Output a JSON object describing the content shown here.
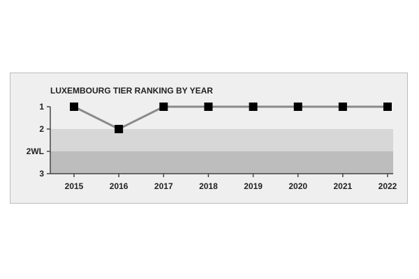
{
  "chart_data": {
    "type": "line",
    "title": "LUXEMBOURG TIER RANKING BY YEAR",
    "xlabel": "",
    "ylabel": "",
    "categories": [
      "2015",
      "2016",
      "2017",
      "2018",
      "2019",
      "2020",
      "2021",
      "2022"
    ],
    "y_ticks": [
      "1",
      "2",
      "2WL",
      "3"
    ],
    "values": [
      1,
      2,
      1,
      1,
      1,
      1,
      1,
      1
    ],
    "value_labels": [
      "1",
      "2",
      "1",
      "1",
      "1",
      "1",
      "1",
      "1"
    ],
    "ylim": [
      1,
      4
    ],
    "y_inverted": true,
    "bands": [
      {
        "from": 1,
        "to": 2,
        "color": "#efefef"
      },
      {
        "from": 2,
        "to": 3,
        "color": "#d7d7d7"
      },
      {
        "from": 3,
        "to": 4,
        "color": "#bdbdbd"
      }
    ],
    "colors": {
      "line": "#8a8a8a",
      "marker": "#000000",
      "axis": "#444444",
      "frame_bg": "#efefef",
      "frame_border": "#bcbcbc"
    },
    "grid": false,
    "legend": "none"
  }
}
